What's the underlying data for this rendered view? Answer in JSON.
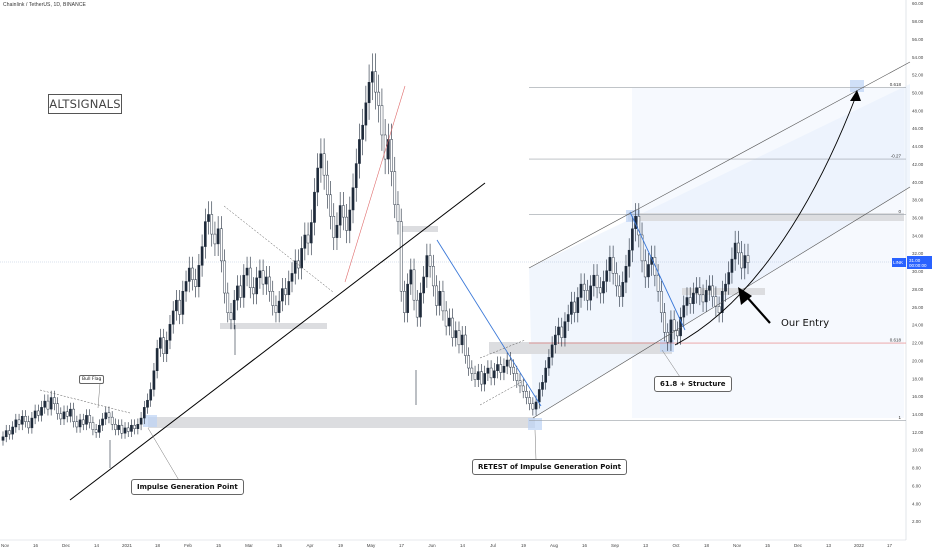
{
  "header": {
    "title": "Chainlink / TetherUS, 1D, BINANCE"
  },
  "logo": {
    "text": "ALTSIGNALS"
  },
  "annotations": {
    "bull_flag": "Bull Flag",
    "impulse": "Impulse Generation Point",
    "retest": "RETEST of Impulse Generation Point",
    "structure": "61.8 + Structure",
    "entry": "Our Entry"
  },
  "colors": {
    "up_candle": "#1e2a3a",
    "down_candle": "#ffffff",
    "line_blue": "#3a78d8",
    "channel_fill": "#e6effc",
    "zone_gray": "#dcdde0",
    "price_tag": "#2962ff",
    "fib_red": "#e05a5a"
  },
  "chart_data": {
    "type": "candlestick",
    "symbol": "LINKUSDT",
    "timeframe": "1D",
    "exchange": "BINANCE",
    "y_axis": {
      "ylim": [
        0,
        60
      ],
      "ticks": [
        "2.00",
        "4.00",
        "6.00",
        "8.00",
        "10.00",
        "12.00",
        "14.00",
        "16.00",
        "18.00",
        "20.00",
        "22.00",
        "24.00",
        "26.00",
        "28.00",
        "30.00",
        "32.00",
        "34.00",
        "36.00",
        "38.00",
        "40.00",
        "42.00",
        "44.00",
        "46.00",
        "48.00",
        "50.00",
        "52.00",
        "54.00",
        "56.00",
        "58.00",
        "60.00"
      ]
    },
    "x_axis": {
      "ticks": [
        "Nov",
        "16",
        "Dec",
        "14",
        "2021",
        "18",
        "Feb",
        "15",
        "Mar",
        "15",
        "Apr",
        "19",
        "May",
        "17",
        "Jun",
        "14",
        "Jul",
        "19",
        "Aug",
        "16",
        "Sep",
        "13",
        "Oct",
        "18",
        "Nov",
        "15",
        "Dec",
        "13",
        "2022",
        "17"
      ]
    },
    "last_price": {
      "symbol": "LINKUSDT",
      "value": "31.00",
      "sub": "00:00:00"
    },
    "fib_levels": [
      {
        "label": "0.618",
        "price": 50.6
      },
      {
        "label": "-0.27",
        "price": 42.6
      },
      {
        "label": "0",
        "price": 36.4
      },
      {
        "label": "0.618",
        "price": 22.0
      },
      {
        "label": "1",
        "price": 13.3
      }
    ],
    "closes": [
      11.5,
      12.2,
      11.8,
      12.6,
      13.4,
      12.9,
      13.8,
      13.2,
      12.5,
      13.6,
      14.4,
      13.9,
      14.8,
      15.5,
      14.6,
      15.9,
      15.2,
      14.1,
      13.5,
      14.3,
      13.8,
      14.6,
      13.2,
      12.6,
      13.4,
      12.9,
      13.9,
      13.1,
      12.3,
      12.0,
      12.8,
      13.5,
      14.2,
      13.7,
      12.9,
      12.3,
      12.8,
      11.9,
      12.5,
      12.1,
      12.8,
      12.4,
      12.9,
      13.6,
      14.8,
      15.6,
      16.8,
      18.9,
      21.4,
      22.6,
      20.8,
      22.3,
      24.1,
      25.6,
      26.8,
      25.2,
      27.8,
      28.9,
      30.4,
      29.1,
      28.3,
      30.7,
      32.8,
      35.6,
      36.4,
      34.2,
      33.1,
      34.8,
      31.2,
      27.6,
      25.4,
      24.6,
      26.8,
      28.4,
      27.1,
      29.6,
      30.4,
      28.2,
      27.5,
      29.3,
      30.1,
      28.6,
      29.4,
      27.8,
      26.2,
      25.4,
      26.7,
      28.1,
      27.4,
      28.9,
      29.8,
      31.2,
      30.4,
      32.6,
      34.1,
      33.2,
      35.5,
      38.9,
      41.6,
      43.2,
      40.8,
      38.6,
      36.2,
      33.8,
      35.2,
      37.4,
      36.1,
      34.6,
      36.9,
      39.4,
      42.1,
      44.8,
      46.4,
      48.9,
      51.2,
      52.4,
      50.1,
      48.6,
      45.3,
      42.6,
      44.8,
      41.2,
      37.5,
      35.6,
      27.8,
      25.4,
      28.6,
      30.2,
      26.8,
      24.9,
      27.6,
      29.4,
      31.8,
      30.6,
      28.4,
      26.2,
      27.8,
      25.6,
      23.9,
      24.8,
      22.6,
      23.4,
      21.8,
      22.9,
      20.6,
      19.2,
      18.6,
      17.9,
      18.8,
      17.4,
      18.6,
      19.2,
      18.1,
      18.9,
      19.6,
      18.7,
      19.4,
      20.1,
      19.3,
      18.6,
      17.8,
      17.2,
      16.6,
      15.9,
      15.2,
      14.6,
      15.4,
      16.8,
      17.6,
      19.2,
      20.4,
      21.8,
      22.9,
      23.8,
      22.6,
      24.4,
      25.2,
      26.6,
      25.4,
      27.1,
      28.6,
      27.9,
      26.8,
      28.4,
      29.6,
      28.2,
      27.6,
      28.9,
      30.1,
      31.6,
      29.8,
      28.4,
      27.2,
      28.8,
      30.6,
      32.4,
      34.8,
      36.2,
      34.1,
      31.2,
      29.4,
      30.8,
      31.6,
      29.6,
      27.8,
      25.4,
      23.2,
      22.1,
      24.6,
      23.4,
      22.8,
      24.9,
      26.2,
      27.1,
      26.4,
      27.6,
      28.2,
      27.4,
      26.6,
      27.9,
      28.4,
      27.2,
      26.1,
      25.4,
      27.8,
      28.6,
      29.9,
      31.4,
      33.2,
      32.1,
      30.4,
      31.8,
      31.0
    ]
  }
}
